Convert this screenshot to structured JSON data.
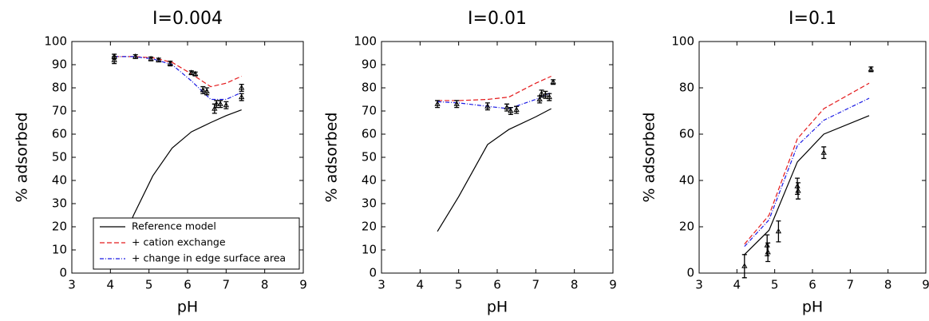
{
  "chart_data": [
    {
      "type": "line",
      "title": "I=0.004",
      "xlabel": "pH",
      "ylabel": "% adsorbed",
      "xlim": [
        3,
        9
      ],
      "ylim": [
        0,
        100
      ],
      "xticks": [
        3,
        4,
        5,
        6,
        7,
        8,
        9
      ],
      "yticks": [
        0,
        10,
        20,
        30,
        40,
        50,
        60,
        70,
        80,
        90,
        100
      ],
      "legend": "lower right",
      "series": [
        {
          "name": "Reference model",
          "color": "#000000",
          "dash": "solid",
          "x": [
            4.1,
            4.6,
            5.1,
            5.6,
            6.1,
            6.6,
            7.0,
            7.4
          ],
          "values": [
            5,
            25,
            42,
            54,
            61,
            65,
            68,
            70.5
          ]
        },
        {
          "name": "+ cation exchange",
          "color": "#e41a1c",
          "dash": "dashed",
          "x": [
            4.1,
            4.6,
            5.1,
            5.6,
            6.1,
            6.6,
            7.0,
            7.4
          ],
          "values": [
            93.5,
            93.5,
            93,
            91,
            86,
            80.5,
            82,
            85
          ]
        },
        {
          "name": "+ change in edge surface area",
          "color": "#1a1ae4",
          "dash": "dashdot",
          "x": [
            4.1,
            4.6,
            5.1,
            5.6,
            6.1,
            6.6,
            7.0,
            7.4
          ],
          "values": [
            93.5,
            93.5,
            92.5,
            90,
            83,
            75,
            75,
            78
          ]
        }
      ],
      "measured": {
        "color": "#000000",
        "x": [
          4.1,
          4.1,
          4.65,
          5.05,
          5.25,
          5.55,
          6.1,
          6.2,
          6.4,
          6.5,
          6.7,
          6.75,
          6.85,
          7.0,
          7.4,
          7.4
        ],
        "values": [
          93.5,
          92,
          93.5,
          92.5,
          92,
          90.5,
          86.5,
          86,
          79,
          78.5,
          71,
          73,
          73,
          72.5,
          80,
          76
        ],
        "errors": [
          1,
          1.5,
          0.8,
          0.8,
          0.8,
          1,
          0.8,
          0.8,
          1.5,
          1.5,
          2,
          1.5,
          1.5,
          1.5,
          1.5,
          1.5
        ]
      }
    },
    {
      "type": "line",
      "title": "I=0.01",
      "xlabel": "pH",
      "ylabel": "% adsorbed",
      "xlim": [
        3,
        9
      ],
      "ylim": [
        0,
        100
      ],
      "xticks": [
        3,
        4,
        5,
        6,
        7,
        8,
        9
      ],
      "yticks": [
        0,
        10,
        20,
        30,
        40,
        50,
        60,
        70,
        80,
        90,
        100
      ],
      "series": [
        {
          "color": "#000000",
          "dash": "solid",
          "x": [
            4.45,
            5.0,
            5.75,
            6.3,
            7.0,
            7.4
          ],
          "values": [
            18,
            33,
            55.5,
            62,
            67.5,
            71
          ]
        },
        {
          "color": "#e41a1c",
          "dash": "dashed",
          "x": [
            4.45,
            5.0,
            5.75,
            6.3,
            7.0,
            7.4
          ],
          "values": [
            74.5,
            74.5,
            75,
            76,
            82,
            85
          ]
        },
        {
          "color": "#1a1ae4",
          "dash": "dashdot",
          "x": [
            4.45,
            5.0,
            5.75,
            6.3,
            7.0,
            7.4
          ],
          "values": [
            74,
            73.5,
            72,
            71,
            75,
            78
          ]
        }
      ],
      "measured": {
        "color": "#000000",
        "x": [
          4.45,
          4.95,
          5.75,
          6.25,
          6.35,
          6.5,
          7.1,
          7.15,
          7.25,
          7.35,
          7.45
        ],
        "values": [
          73,
          73,
          72,
          71.5,
          70,
          70.5,
          75,
          77.5,
          77,
          76,
          82.5
        ],
        "errors": [
          1.5,
          1.5,
          1.5,
          1.5,
          1.5,
          1.5,
          1.5,
          1.5,
          1.5,
          1.5,
          1
        ]
      }
    },
    {
      "type": "line",
      "title": "I=0.1",
      "xlabel": "pH",
      "ylabel": "% adsorbed",
      "xlim": [
        3,
        9
      ],
      "ylim": [
        0,
        100
      ],
      "xticks": [
        3,
        4,
        5,
        6,
        7,
        8,
        9
      ],
      "yticks": [
        0,
        20,
        40,
        60,
        80,
        100
      ],
      "series": [
        {
          "color": "#000000",
          "dash": "solid",
          "x": [
            4.2,
            4.85,
            5.6,
            6.3,
            7.5
          ],
          "values": [
            8,
            18.5,
            48,
            60,
            68
          ]
        },
        {
          "color": "#e41a1c",
          "dash": "dashed",
          "x": [
            4.2,
            4.85,
            5.6,
            6.3,
            7.5
          ],
          "values": [
            12.5,
            25,
            58,
            71,
            82
          ]
        },
        {
          "color": "#1a1ae4",
          "dash": "dashdot",
          "x": [
            4.2,
            4.85,
            5.6,
            6.3,
            7.5
          ],
          "values": [
            11.5,
            23,
            55,
            66,
            75.5
          ]
        }
      ],
      "measured": {
        "color": "#000000",
        "x": [
          4.2,
          4.8,
          4.82,
          5.1,
          5.6,
          5.62,
          6.3,
          7.55
        ],
        "values": [
          3,
          12,
          9,
          18,
          37.5,
          35.5,
          52,
          88
        ],
        "errors": [
          5,
          4.5,
          4,
          4.5,
          3.5,
          3.5,
          2.5,
          1
        ]
      }
    }
  ]
}
